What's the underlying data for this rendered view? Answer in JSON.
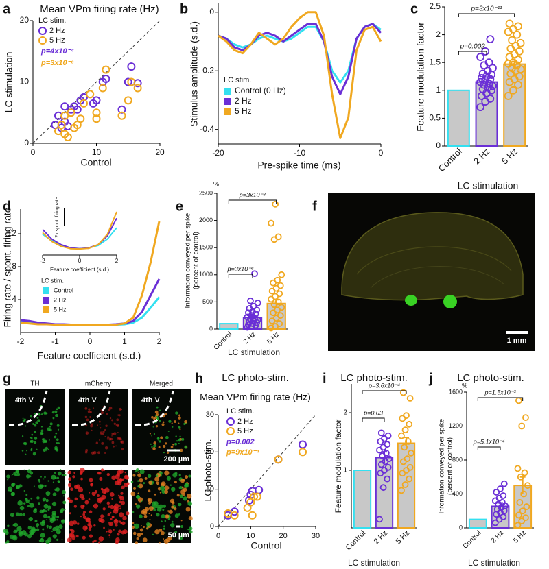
{
  "chart_data": [
    {
      "panel": "a",
      "type": "scatter",
      "title": "Mean VPm firing rate (Hz)",
      "xlabel": "Control",
      "ylabel": "LC stimulation",
      "xlim": [
        0,
        20
      ],
      "ylim": [
        0,
        20
      ],
      "xticks": [
        0,
        10,
        20
      ],
      "yticks": [
        0,
        10,
        20
      ],
      "legend_title": "LC stim.",
      "series": [
        {
          "name": "2 Hz",
          "color": "#6a2fd6",
          "p_value": "p=4x10⁻⁴",
          "x": [
            3.5,
            4,
            4.5,
            5,
            5.5,
            6,
            6.5,
            5,
            7,
            7.5,
            8,
            9.5,
            10,
            11,
            11.5,
            14,
            15,
            15.5,
            16.5
          ],
          "values": [
            3,
            4.5,
            2.5,
            3.5,
            2.8,
            5.5,
            6,
            6,
            5.5,
            7,
            7.5,
            6.5,
            7,
            10,
            10.5,
            5.5,
            10,
            12.5,
            9.8
          ]
        },
        {
          "name": "5 Hz",
          "color": "#f0a820",
          "p_value": "p=3x10⁻⁶",
          "x": [
            4,
            4.5,
            5,
            5.5,
            6.5,
            7,
            5,
            6,
            7.5,
            8,
            9,
            10,
            10,
            11,
            11.5,
            14,
            15,
            15.5,
            16.5
          ],
          "values": [
            2,
            3,
            1.5,
            1,
            2.5,
            3,
            4.5,
            5,
            4,
            6.5,
            8,
            4,
            5,
            9,
            12,
            4.5,
            7,
            10,
            9
          ]
        }
      ]
    },
    {
      "panel": "b",
      "type": "line",
      "xlabel": "Pre-spike time (ms)",
      "ylabel": "Stimulus amplitude (s.d.)",
      "xlim": [
        -20,
        0
      ],
      "ylim": [
        -0.45,
        0.03
      ],
      "xticks": [
        -20,
        -10,
        0
      ],
      "yticks": [
        -0.4,
        -0.2,
        0
      ],
      "legend_title": "LC stim.",
      "x": [
        -20,
        -19,
        -18,
        -17,
        -16,
        -15,
        -14,
        -13,
        -12,
        -11,
        -10,
        -9,
        -8,
        -7,
        -6,
        -5,
        -4,
        -3,
        -2,
        -1,
        0
      ],
      "series": [
        {
          "name": "Control (0 Hz)",
          "color": "#33e0f0",
          "values": [
            -0.08,
            -0.09,
            -0.11,
            -0.12,
            -0.11,
            -0.09,
            -0.08,
            -0.09,
            -0.1,
            -0.09,
            -0.07,
            -0.05,
            -0.05,
            -0.1,
            -0.2,
            -0.24,
            -0.2,
            -0.09,
            -0.05,
            -0.04,
            -0.06
          ]
        },
        {
          "name": "2 Hz",
          "color": "#6a2fd6",
          "values": [
            -0.08,
            -0.09,
            -0.12,
            -0.13,
            -0.11,
            -0.08,
            -0.07,
            -0.08,
            -0.1,
            -0.08,
            -0.06,
            -0.04,
            -0.04,
            -0.1,
            -0.22,
            -0.28,
            -0.22,
            -0.09,
            -0.05,
            -0.04,
            -0.07
          ]
        },
        {
          "name": "5 Hz",
          "color": "#f0a820",
          "values": [
            -0.08,
            -0.1,
            -0.13,
            -0.14,
            -0.11,
            -0.07,
            -0.09,
            -0.11,
            -0.09,
            -0.05,
            -0.02,
            0,
            0,
            -0.08,
            -0.28,
            -0.43,
            -0.36,
            -0.13,
            -0.06,
            -0.05,
            -0.1
          ]
        }
      ]
    },
    {
      "panel": "c",
      "type": "bar",
      "xlabel": "LC stimulation",
      "ylabel": "Feature modulation factor",
      "ylim": [
        0,
        2.5
      ],
      "yticks": [
        0,
        0.5,
        1,
        1.5,
        2,
        2.5
      ],
      "categories": [
        "Control",
        "2 Hz",
        "5 Hz"
      ],
      "values": [
        1,
        1.15,
        1.47
      ],
      "errors": [
        null,
        0.04,
        0.05
      ],
      "colors": [
        "#33e0f0",
        "#6a2fd6",
        "#f0a820"
      ],
      "points": [
        [],
        [
          0.7,
          0.8,
          0.85,
          0.9,
          0.95,
          1.0,
          1.02,
          1.05,
          1.08,
          1.1,
          1.12,
          1.15,
          1.18,
          1.2,
          1.22,
          1.25,
          1.28,
          1.3,
          1.35,
          1.4,
          1.45,
          1.5,
          1.6,
          1.7,
          1.92
        ],
        [
          0.9,
          1.0,
          1.1,
          1.15,
          1.2,
          1.25,
          1.3,
          1.35,
          1.38,
          1.4,
          1.45,
          1.48,
          1.5,
          1.55,
          1.6,
          1.65,
          1.7,
          1.75,
          1.8,
          1.85,
          1.9,
          2.0,
          2.05,
          2.1,
          2.15,
          2.2
        ]
      ],
      "annotations": [
        "p=0.002",
        "p=3x10⁻¹¹"
      ]
    },
    {
      "panel": "d",
      "type": "line",
      "xlabel": "Feature coefficient (s.d.)",
      "ylabel": "Firing rate / spont. firing rate",
      "xlim": [
        -2,
        2
      ],
      "ylim": [
        0,
        15
      ],
      "xticks": [
        -2,
        -1,
        0,
        1,
        2
      ],
      "yticks": [
        4,
        8,
        12
      ],
      "legend_title": "LC stim.",
      "x": [
        -2,
        -1.75,
        -1.5,
        -1.25,
        -1,
        -0.75,
        -0.5,
        -0.25,
        0,
        0.25,
        0.5,
        0.75,
        1,
        1.25,
        1.5,
        1.75,
        2
      ],
      "series": [
        {
          "name": "Control",
          "color": "#33e0f0",
          "values": [
            1.3,
            1.2,
            1.1,
            1.0,
            1.0,
            0.95,
            0.9,
            0.9,
            0.9,
            0.9,
            0.9,
            0.95,
            1.0,
            1.2,
            1.8,
            3.0,
            4.3
          ]
        },
        {
          "name": "2 Hz",
          "color": "#6a2fd6",
          "values": [
            1.5,
            1.4,
            1.2,
            1.1,
            1.0,
            1.0,
            0.95,
            0.9,
            0.9,
            0.9,
            0.95,
            1.0,
            1.1,
            1.4,
            2.5,
            4.5,
            6.5
          ]
        },
        {
          "name": "5 Hz",
          "color": "#f0a820",
          "values": [
            1.2,
            1.1,
            1.0,
            1.0,
            0.95,
            0.9,
            0.9,
            0.9,
            0.9,
            0.9,
            0.9,
            0.95,
            1.1,
            1.8,
            4.5,
            8.5,
            13.5
          ]
        }
      ]
    },
    {
      "type": "line",
      "xlabel": "Feature coefficient (s.d.)",
      "scale_bar": "2x spont. firing rate",
      "xlim": [
        -2,
        2
      ],
      "ylim": [
        0.5,
        3.5
      ],
      "xticks": [
        -2,
        0,
        2
      ],
      "x": [
        -2,
        -1.5,
        -1,
        -0.5,
        0,
        0.5,
        1,
        1.5,
        2
      ],
      "series": [
        {
          "color": "#33e0f0",
          "values": [
            1.8,
            1.4,
            1.1,
            0.95,
            0.9,
            0.95,
            1.1,
            1.5,
            2.2
          ]
        },
        {
          "color": "#6a2fd6",
          "values": [
            2.1,
            1.5,
            1.15,
            0.95,
            0.9,
            0.95,
            1.15,
            1.7,
            2.8
          ]
        },
        {
          "color": "#f0a820",
          "values": [
            1.9,
            1.35,
            1.05,
            0.9,
            0.88,
            0.92,
            1.15,
            1.8,
            3.2
          ]
        }
      ]
    },
    {
      "panel": "e",
      "type": "bar",
      "unit": "%",
      "xlabel": "LC stimulation",
      "ylabel": [
        "Information conveyed per spike",
        "(percent of control)"
      ],
      "ylim": [
        0,
        2500
      ],
      "yticks": [
        0,
        500,
        1000,
        1500,
        2000,
        2500
      ],
      "categories": [
        "Control",
        "2 Hz",
        "5 Hz"
      ],
      "values": [
        100,
        210,
        470
      ],
      "errors": [
        null,
        30,
        70
      ],
      "colors": [
        "#33e0f0",
        "#6a2fd6",
        "#f0a820"
      ],
      "points": [
        [],
        [
          30,
          50,
          70,
          80,
          100,
          120,
          140,
          150,
          170,
          190,
          200,
          220,
          250,
          280,
          300,
          320,
          350,
          380,
          420,
          480,
          520,
          1020
        ],
        [
          20,
          50,
          100,
          150,
          200,
          250,
          300,
          350,
          400,
          450,
          500,
          550,
          600,
          650,
          700,
          750,
          800,
          850,
          900,
          1000,
          1650,
          1700,
          1950,
          2300
        ]
      ],
      "annotations": [
        "p=3x10⁻⁶",
        "p=3x10⁻⁸"
      ]
    },
    {
      "panel": "h",
      "type": "scatter",
      "title": "LC photo-stim.",
      "subtitle": "Mean VPm firing rate (Hz)",
      "xlabel": "Control",
      "ylabel": "LC photo-stim.",
      "xlim": [
        0,
        30
      ],
      "ylim": [
        0,
        30
      ],
      "xticks": [
        0,
        10,
        20,
        30
      ],
      "yticks": [
        0,
        10,
        20,
        30
      ],
      "legend_title": "LC stim.",
      "series": [
        {
          "name": "2 Hz",
          "color": "#6a2fd6",
          "p_value": "p=0.002",
          "x": [
            3,
            5,
            9.5,
            10,
            10.5,
            12.5,
            18.5,
            26
          ],
          "values": [
            3,
            4,
            7,
            8.5,
            9.5,
            9.8,
            18,
            22
          ]
        },
        {
          "name": "5 Hz",
          "color": "#f0a820",
          "p_value": "p=9x10⁻⁴",
          "x": [
            3,
            5,
            9,
            10,
            10.5,
            11,
            12,
            18.5,
            26
          ],
          "values": [
            3.5,
            3,
            5,
            6.5,
            3,
            8,
            8,
            18,
            20
          ]
        }
      ]
    },
    {
      "panel": "i",
      "type": "bar",
      "title": "LC photo-stim.",
      "xlabel": "LC stimulation",
      "ylabel": "Feature modulation factor",
      "ylim": [
        0,
        2.5
      ],
      "yticks": [
        1,
        2
      ],
      "categories": [
        "Control",
        "2 Hz",
        "5 Hz"
      ],
      "values": [
        1,
        1.22,
        1.47
      ],
      "errors": [
        null,
        0.1,
        0.1
      ],
      "colors": [
        "#33e0f0",
        "#6a2fd6",
        "#f0a820"
      ],
      "points": [
        [],
        [
          0.15,
          0.7,
          0.85,
          0.95,
          1.0,
          1.05,
          1.1,
          1.15,
          1.2,
          1.25,
          1.3,
          1.35,
          1.4,
          1.45,
          1.5,
          1.55,
          1.6,
          1.65
        ],
        [
          0.65,
          0.75,
          0.85,
          0.95,
          1.0,
          1.05,
          1.15,
          1.2,
          1.3,
          1.4,
          1.5,
          1.6,
          1.7,
          1.8,
          1.9,
          1.95,
          2.25,
          2.35
        ]
      ],
      "annotations": [
        "p=0.03",
        "p=3.6x10⁻⁴"
      ]
    },
    {
      "panel": "j",
      "type": "bar",
      "title": "LC photo-stim.",
      "unit": "%",
      "xlabel": "LC stimulation",
      "ylabel": [
        "Information conveyed per spike",
        "(percent of control)"
      ],
      "ylim": [
        0,
        1600
      ],
      "yticks": [
        0,
        400,
        800,
        1200,
        1600
      ],
      "categories": [
        "Control",
        "2 Hz",
        "5 Hz"
      ],
      "values": [
        100,
        255,
        500
      ],
      "errors": [
        null,
        40,
        100
      ],
      "colors": [
        "#33e0f0",
        "#6a2fd6",
        "#f0a820"
      ],
      "points": [
        [],
        [
          60,
          100,
          130,
          160,
          180,
          200,
          220,
          240,
          260,
          280,
          300,
          320,
          350,
          380,
          420,
          460,
          520
        ],
        [
          30,
          80,
          120,
          150,
          200,
          250,
          300,
          400,
          500,
          600,
          650,
          700,
          1200,
          1300,
          1500
        ]
      ],
      "annotations": [
        "p=5.1x10⁻⁴",
        "p=1.5x10⁻³"
      ]
    }
  ],
  "image_f": {
    "panel": "f",
    "scale_bar": "1 mm"
  },
  "image_g": {
    "panel": "g",
    "columns": [
      "TH",
      "mCherry",
      "Merged"
    ],
    "region_labels": [
      "4th V",
      "4th V",
      "4th V"
    ],
    "scale_bars": [
      "200 µm",
      "50 µm"
    ]
  }
}
